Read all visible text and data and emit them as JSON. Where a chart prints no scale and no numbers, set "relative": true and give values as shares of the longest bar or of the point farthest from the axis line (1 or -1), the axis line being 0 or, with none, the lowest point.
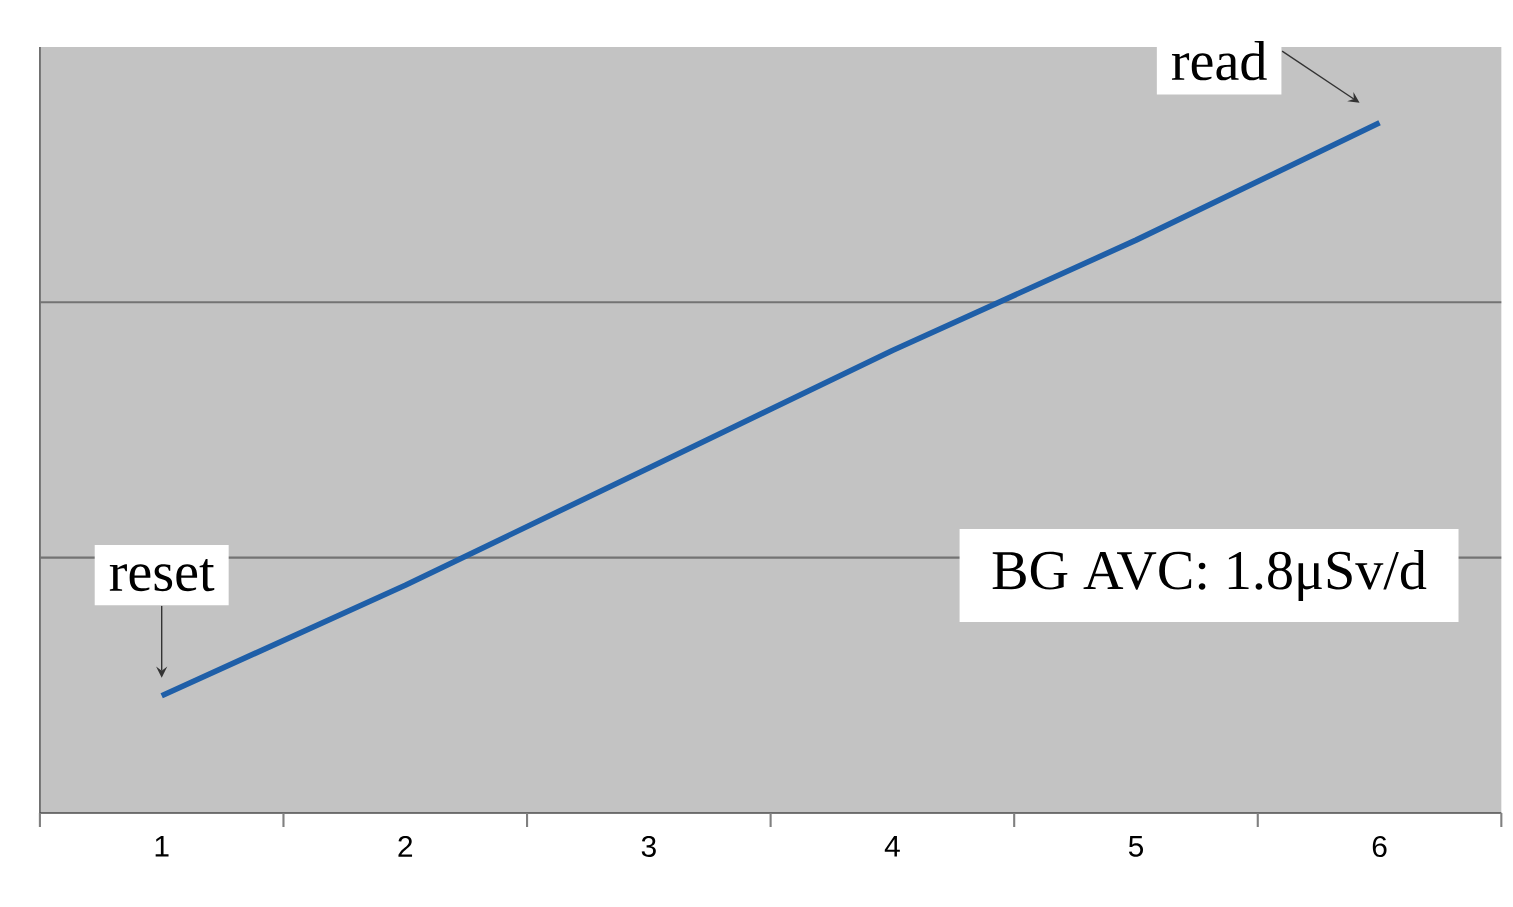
{
  "chart_data": {
    "type": "line",
    "relative": true,
    "categories": [
      "1",
      "2",
      "3",
      "4",
      "5",
      "6"
    ],
    "series": [
      {
        "color": "#1f5fa8",
        "values": [
          0.17,
          0.33,
          0.5,
          0.67,
          0.83,
          1
        ]
      }
    ],
    "marker": "none",
    "ref_lines": [
      {
        "axis": "y",
        "value": 0.37,
        "color": "#737373"
      },
      {
        "axis": "y",
        "value": 0.74,
        "color": "#737373"
      }
    ],
    "annotations": [
      {
        "text": "reset",
        "x": "1",
        "y": 0.17
      },
      {
        "text": "read",
        "x": "6",
        "y": 1
      },
      "BG AVC: 1.8μSv/d"
    ]
  }
}
